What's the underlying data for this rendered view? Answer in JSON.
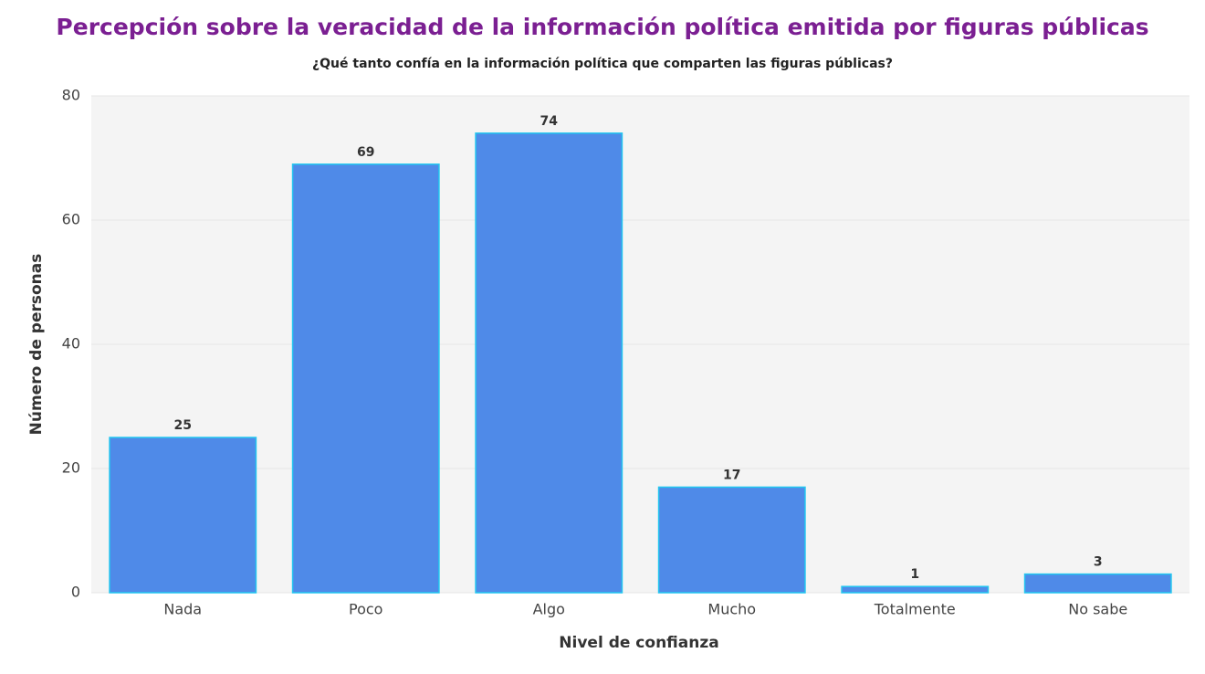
{
  "chart_data": {
    "type": "bar",
    "title": "Percepción sobre la veracidad de la información política emitida por figuras públicas",
    "subtitle": "¿Qué tanto confía en la información política que comparten las figuras públicas?",
    "x_label": "Nivel de confianza",
    "y_label": "Número de personas",
    "categories": [
      "Nada",
      "Poco",
      "Algo",
      "Mucho",
      "Totalmente",
      "No sabe"
    ],
    "values": [
      25,
      69,
      74,
      17,
      1,
      3
    ],
    "color": "#4f8ae8",
    "ylim": [
      0,
      80
    ],
    "yticks": [
      0,
      20,
      40,
      60,
      80
    ],
    "grid": true
  }
}
